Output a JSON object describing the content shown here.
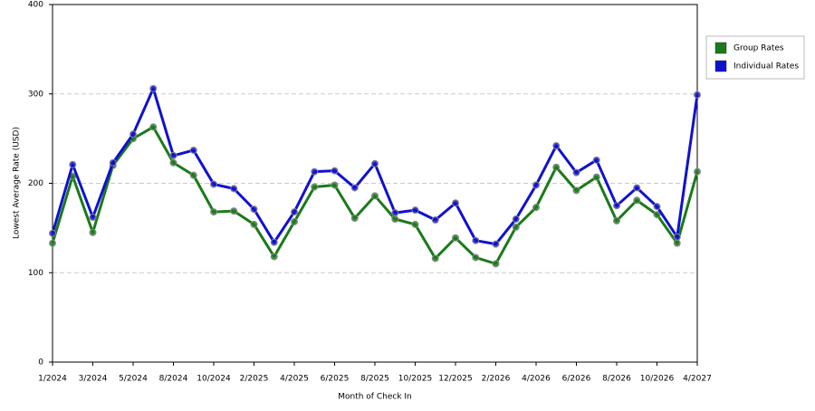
{
  "chart_data": {
    "type": "line",
    "x_label": "Month of Check In",
    "y_label": "Lowest Average Rate (USD)",
    "categories": [
      "1/2024",
      null,
      "3/2024",
      null,
      "5/2024",
      null,
      "8/2024",
      null,
      "10/2024",
      null,
      "2/2025",
      null,
      "4/2025",
      null,
      "6/2025",
      null,
      "8/2025",
      null,
      "10/2025",
      null,
      "12/2025",
      null,
      "2/2026",
      null,
      "4/2026",
      null,
      "6/2026",
      null,
      "8/2026",
      null,
      "10/2026",
      null,
      "4/2027"
    ],
    "series": [
      {
        "name": "Group Rates",
        "color": "#1a7a1a",
        "values": [
          133,
          208,
          145,
          220,
          250,
          263,
          223,
          209,
          168,
          169,
          154,
          118,
          157,
          196,
          198,
          161,
          186,
          160,
          154,
          116,
          139,
          117,
          110,
          151,
          173,
          218,
          192,
          207,
          158,
          181,
          165,
          133,
          213
        ]
      },
      {
        "name": "Individual Rates",
        "color": "#1010d0",
        "values": [
          144,
          221,
          162,
          223,
          255,
          306,
          231,
          237,
          199,
          194,
          171,
          134,
          168,
          213,
          214,
          195,
          222,
          167,
          170,
          159,
          178,
          136,
          132,
          160,
          198,
          242,
          212,
          226,
          175,
          195,
          174,
          140,
          299
        ]
      }
    ],
    "ylim": [
      0,
      400
    ],
    "yticks": [
      0,
      100,
      200,
      300,
      400
    ],
    "grid": true
  }
}
